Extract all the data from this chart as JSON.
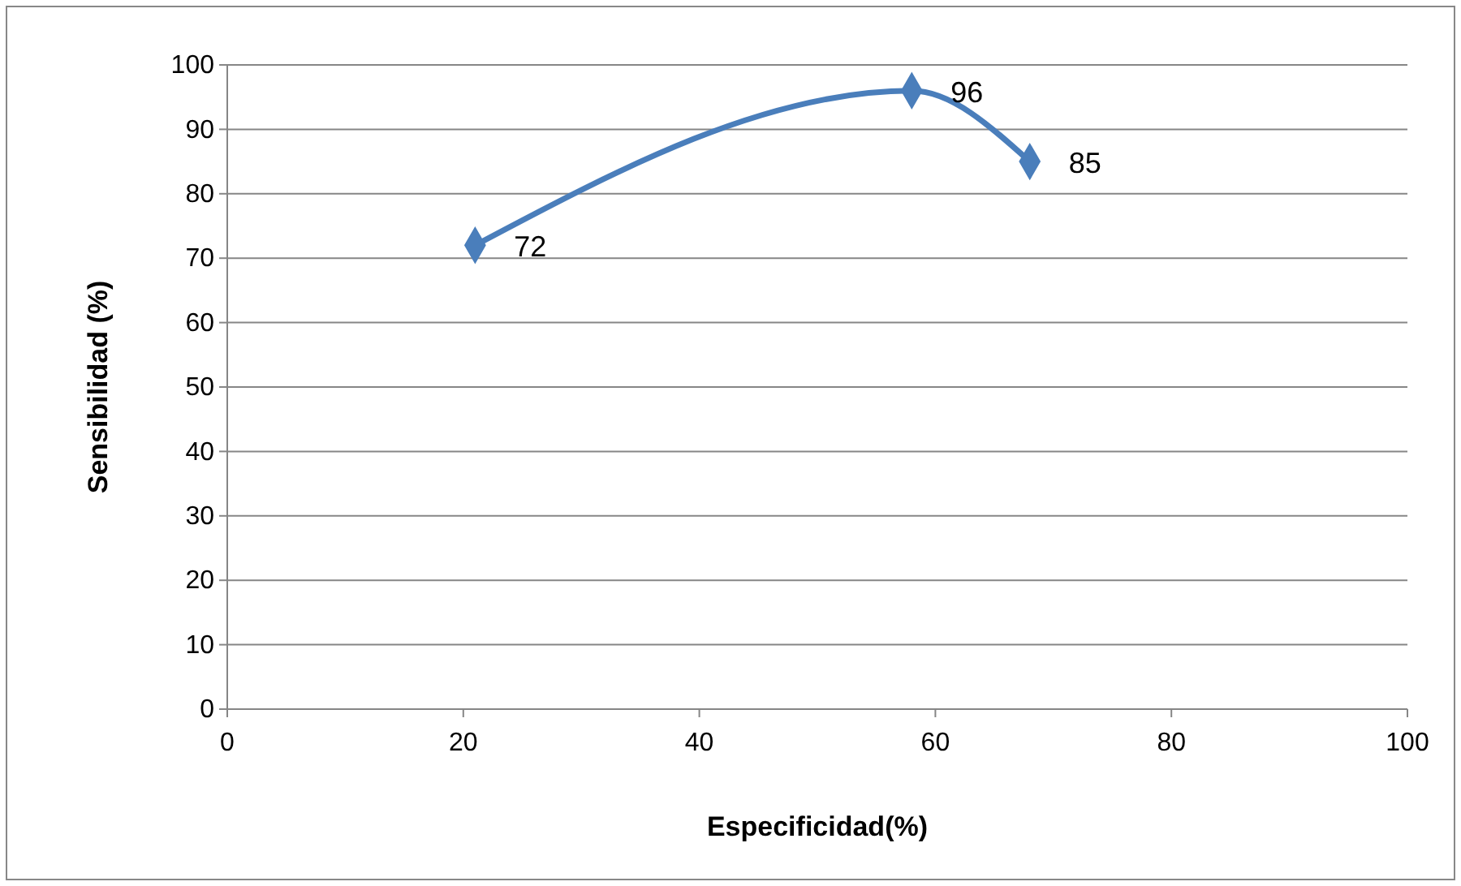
{
  "chart_data": {
    "type": "line",
    "xlabel": "Especificidad(%)",
    "ylabel": "Sensibilidad (%)",
    "x": [
      21,
      58,
      68
    ],
    "series": [
      {
        "color": "#4a7ebb",
        "values": [
          72,
          96,
          85
        ]
      }
    ],
    "xlim": [
      0,
      100
    ],
    "xticks": [
      0,
      20,
      40,
      60,
      80,
      100
    ],
    "ylim": [
      0,
      100
    ],
    "yticks": [
      0,
      10,
      20,
      30,
      40,
      50,
      60,
      70,
      80,
      90,
      100
    ],
    "grid": "y",
    "marker": "diamond",
    "line_style": "solid",
    "data_labels": true
  }
}
